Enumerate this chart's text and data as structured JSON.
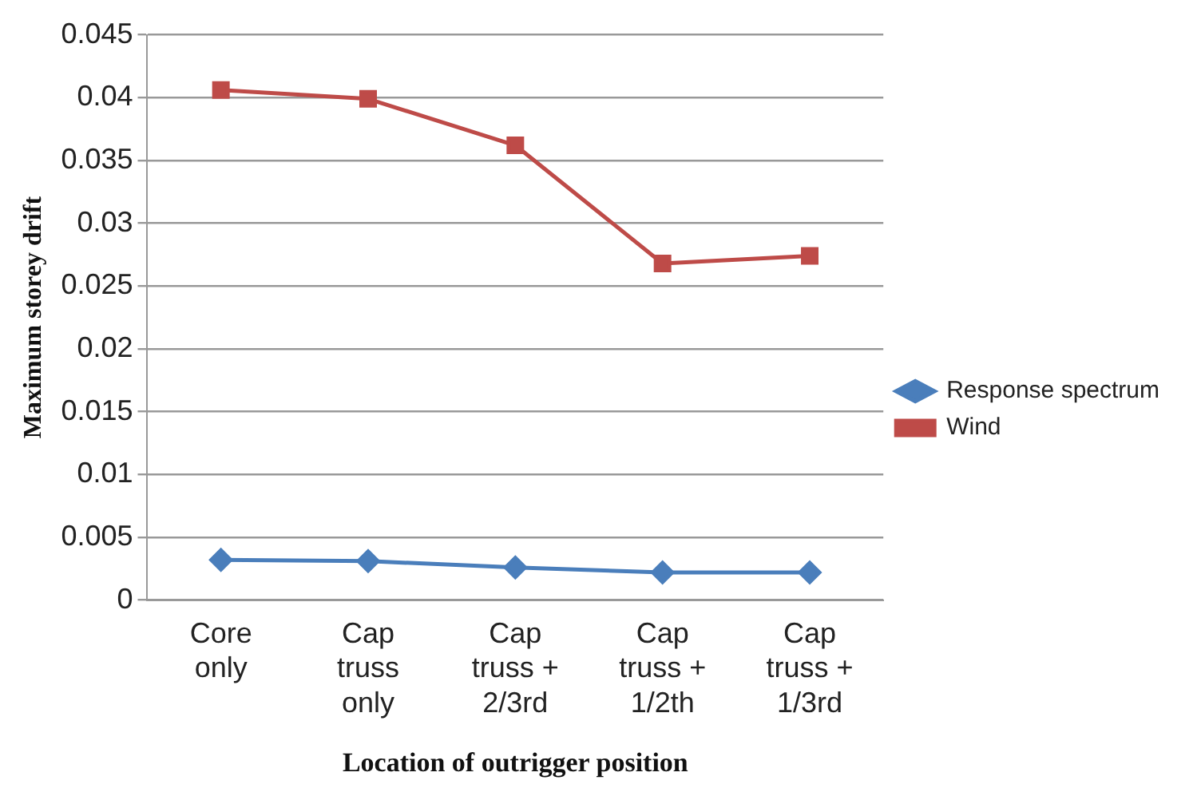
{
  "chart_data": {
    "type": "line",
    "xlabel": "Location of outrigger position",
    "ylabel": "Maximum storey drift",
    "categories": [
      "Core only",
      "Cap truss only",
      "Cap truss + 2/3rd",
      "Cap truss + 1/2th",
      "Cap truss + 1/3rd"
    ],
    "series": [
      {
        "name": "Response spectrum",
        "color": "#4a7ebb",
        "marker": "diamond",
        "values": [
          0.0032,
          0.0031,
          0.0026,
          0.0022,
          0.0022
        ]
      },
      {
        "name": "Wind",
        "color": "#be4b48",
        "marker": "square",
        "values": [
          0.0406,
          0.0399,
          0.0362,
          0.0268,
          0.0274
        ]
      }
    ],
    "ylim": [
      0,
      0.045
    ],
    "yticks": [
      0,
      0.005,
      0.01,
      0.015,
      0.02,
      0.025,
      0.03,
      0.035,
      0.04,
      0.045
    ],
    "grid": "y",
    "legend": "right",
    "line_style": "solid"
  }
}
